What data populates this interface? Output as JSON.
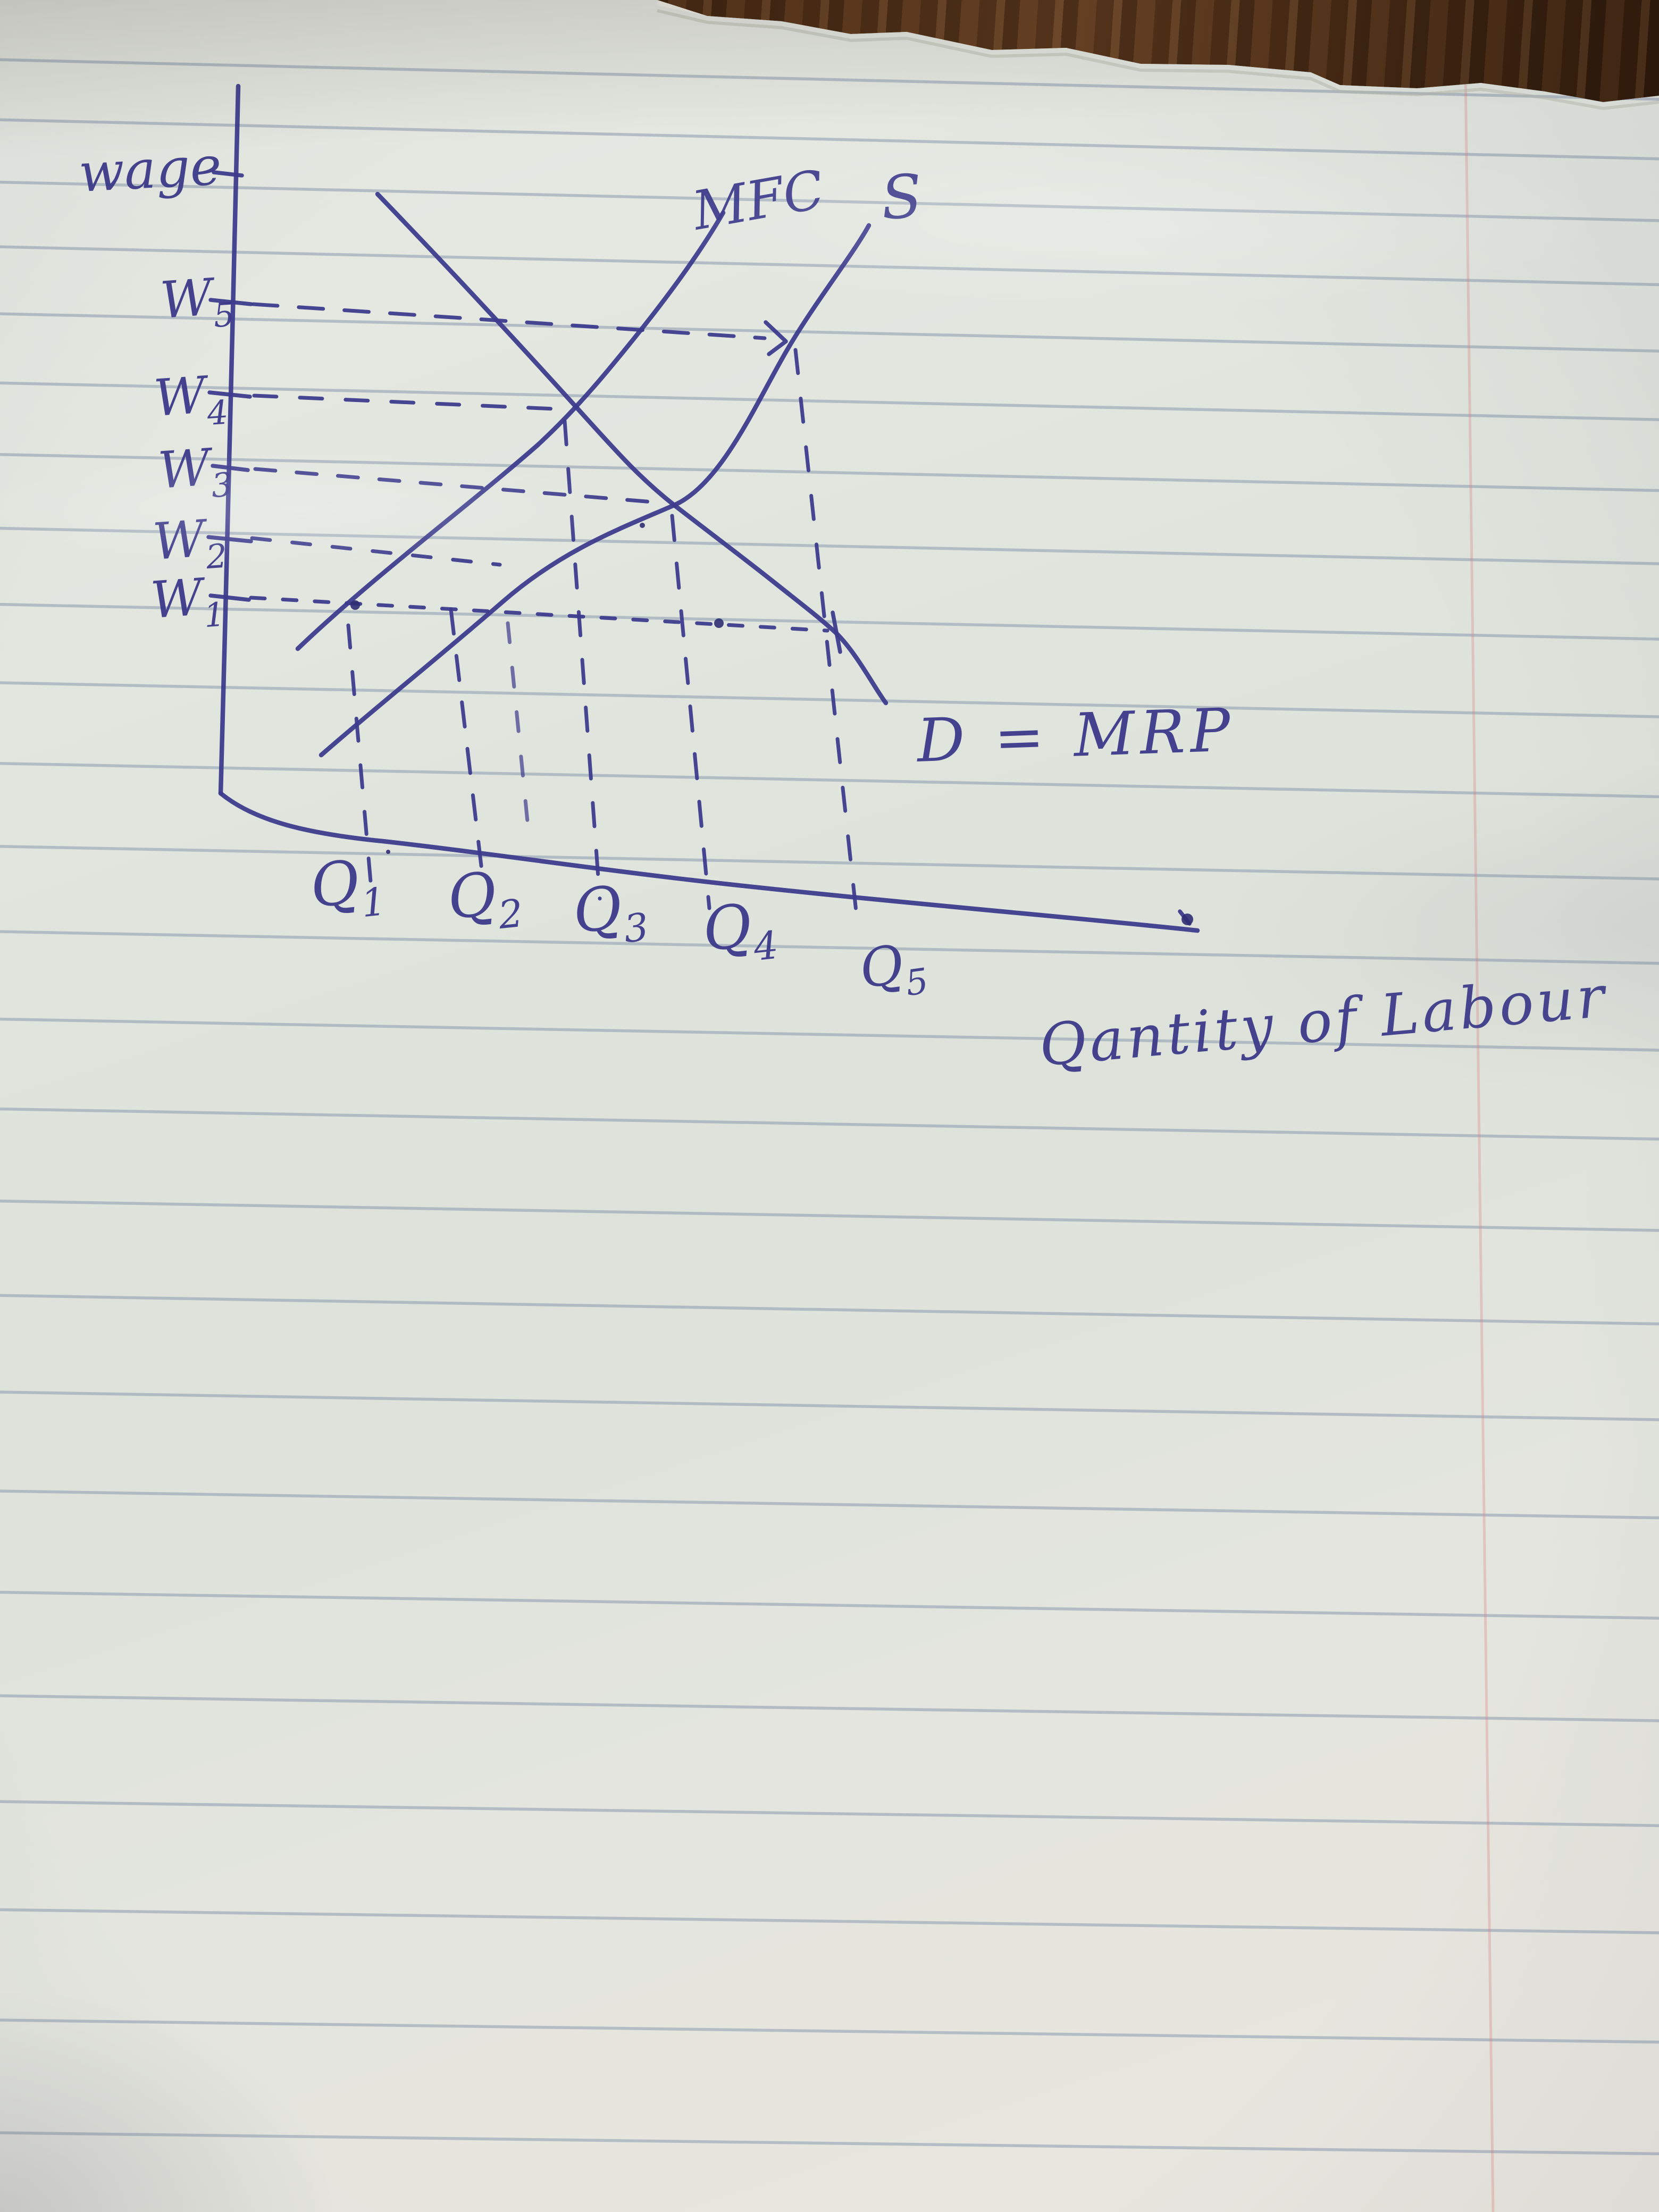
{
  "axis": {
    "y_title": "wage",
    "x_title": "Qantity of Labour",
    "w_labels": [
      {
        "m": "W",
        "s": "5"
      },
      {
        "m": "W",
        "s": "4"
      },
      {
        "m": "W",
        "s": "3"
      },
      {
        "m": "W",
        "s": "2"
      },
      {
        "m": "W",
        "s": "1"
      }
    ],
    "q_labels": [
      {
        "m": "Q",
        "s": "1"
      },
      {
        "m": "Q",
        "s": "2"
      },
      {
        "m": "Q",
        "s": "3"
      },
      {
        "m": "Q",
        "s": "4"
      },
      {
        "m": "Q",
        "s": "5"
      }
    ]
  },
  "curves": {
    "mfc": "MFC",
    "supply": "S",
    "demand": "D = MRP"
  },
  "chart_data": {
    "type": "line",
    "title": "",
    "xlabel": "Qantity of Labour",
    "ylabel": "wage",
    "x_tick_labels": [
      "Q1",
      "Q2",
      "Q3",
      "Q4",
      "Q5"
    ],
    "y_tick_labels": [
      "W1",
      "W2",
      "W3",
      "W4",
      "W5"
    ],
    "axis_units": "ordinal hand-drawn levels: x in Q units (Q1-Q5), y in W units (W1-W5)",
    "grid": false,
    "legend": "labels written beside curves",
    "series": [
      {
        "name": "MFC",
        "points_qw": [
          [
            0.45,
            0.2
          ],
          [
            1.7,
            1.8
          ],
          [
            3.0,
            4.0
          ],
          [
            4.3,
            5.9
          ]
        ]
      },
      {
        "name": "S",
        "points_qw": [
          [
            0.55,
            0.0
          ],
          [
            2.0,
            1.1
          ],
          [
            3.0,
            2.1
          ],
          [
            4.0,
            3.0
          ],
          [
            5.0,
            5.0
          ],
          [
            5.3,
            5.9
          ]
        ]
      },
      {
        "name": "D = MRP",
        "points_qw": [
          [
            0.6,
            5.9
          ],
          [
            3.0,
            4.0
          ],
          [
            4.0,
            3.0
          ],
          [
            5.0,
            1.0
          ],
          [
            5.5,
            0.3
          ]
        ]
      }
    ],
    "key_points": [
      {
        "label": "MFC intersects D",
        "q": "Q3",
        "w": "W4"
      },
      {
        "label": "S intersects D",
        "q": "Q4",
        "w": "W3"
      },
      {
        "label": "W5 dashed guide meets S above Q5",
        "q": "Q5",
        "w": "W5"
      },
      {
        "label": "W1 dashed guide meets D",
        "q": "Q5",
        "w": "W1"
      },
      {
        "label": "W2 dashed guide ends near S",
        "q": "Q2-Q3",
        "w": "W2"
      }
    ],
    "guides": {
      "horizontal_dashed": [
        "W5",
        "W4",
        "W3",
        "W2",
        "W1"
      ],
      "vertical_dashed": [
        "Q1",
        "Q2",
        "Q3",
        "Q4",
        "Q5"
      ]
    }
  },
  "colors": {
    "ink": "#3c3a8c",
    "paper": "#e3e6df",
    "ruled_line": "#8698ac",
    "margin_line": "#dc8080",
    "wood": "#4a2c15"
  }
}
